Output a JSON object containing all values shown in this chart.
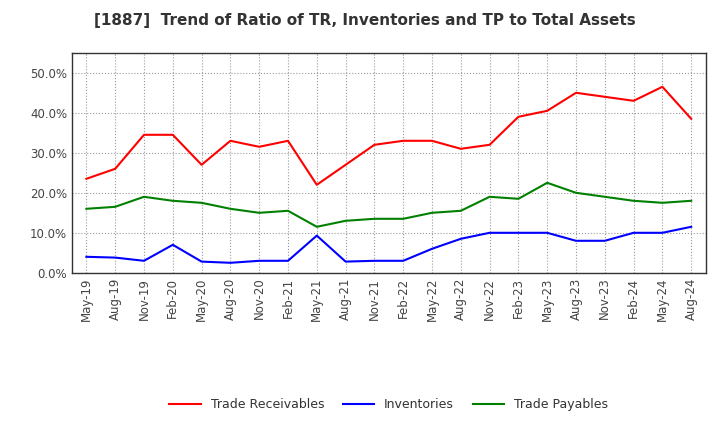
{
  "title": "[1887]  Trend of Ratio of TR, Inventories and TP to Total Assets",
  "x_labels": [
    "May-19",
    "Aug-19",
    "Nov-19",
    "Feb-20",
    "May-20",
    "Aug-20",
    "Nov-20",
    "Feb-21",
    "May-21",
    "Aug-21",
    "Nov-21",
    "Feb-22",
    "May-22",
    "Aug-22",
    "Nov-22",
    "Feb-23",
    "May-23",
    "Aug-23",
    "Nov-23",
    "Feb-24",
    "May-24",
    "Aug-24"
  ],
  "trade_receivables": [
    0.235,
    0.26,
    0.345,
    0.345,
    0.27,
    0.33,
    0.315,
    0.33,
    0.22,
    0.27,
    0.32,
    0.33,
    0.33,
    0.31,
    0.32,
    0.39,
    0.405,
    0.45,
    0.44,
    0.43,
    0.465,
    0.385
  ],
  "inventories": [
    0.04,
    0.038,
    0.03,
    0.07,
    0.028,
    0.025,
    0.03,
    0.03,
    0.093,
    0.028,
    0.03,
    0.03,
    0.06,
    0.085,
    0.1,
    0.1,
    0.1,
    0.08,
    0.08,
    0.1,
    0.1,
    0.115
  ],
  "trade_payables": [
    0.16,
    0.165,
    0.19,
    0.18,
    0.175,
    0.16,
    0.15,
    0.155,
    0.115,
    0.13,
    0.135,
    0.135,
    0.15,
    0.155,
    0.19,
    0.185,
    0.225,
    0.2,
    0.19,
    0.18,
    0.175,
    0.18
  ],
  "tr_color": "#FF0000",
  "inv_color": "#0000FF",
  "tp_color": "#008000",
  "ylim": [
    0.0,
    0.55
  ],
  "yticks": [
    0.0,
    0.1,
    0.2,
    0.3,
    0.4,
    0.5
  ],
  "background_color": "#FFFFFF",
  "plot_bg_color": "#FFFFFF",
  "grid_color": "#999999",
  "legend_labels": [
    "Trade Receivables",
    "Inventories",
    "Trade Payables"
  ],
  "title_fontsize": 11,
  "tick_fontsize": 8.5,
  "legend_fontsize": 9
}
